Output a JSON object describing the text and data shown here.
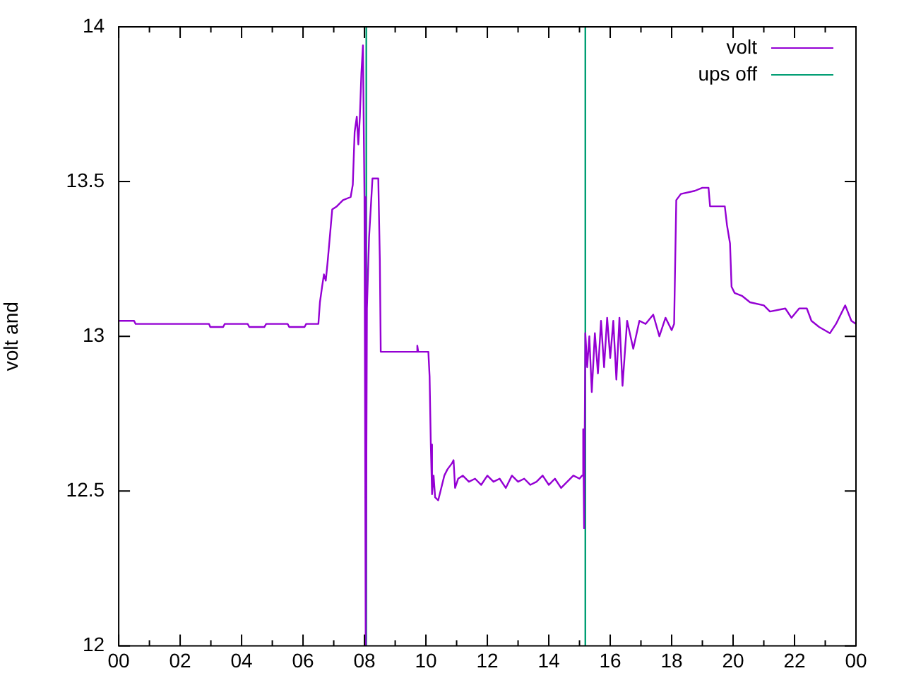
{
  "chart_data": {
    "type": "line",
    "ylabel": "volt and",
    "legend": "top right",
    "marker": "none",
    "line_style": "solid",
    "xlim": [
      0,
      24
    ],
    "xticks": [
      {
        "value": 0,
        "label": "00"
      },
      {
        "value": 1,
        "label": null
      },
      {
        "value": 2,
        "label": "02"
      },
      {
        "value": 3,
        "label": null
      },
      {
        "value": 4,
        "label": "04"
      },
      {
        "value": 5,
        "label": null
      },
      {
        "value": 6,
        "label": "06"
      },
      {
        "value": 7,
        "label": null
      },
      {
        "value": 8,
        "label": "08"
      },
      {
        "value": 9,
        "label": null
      },
      {
        "value": 10,
        "label": "10"
      },
      {
        "value": 11,
        "label": null
      },
      {
        "value": 12,
        "label": "12"
      },
      {
        "value": 13,
        "label": null
      },
      {
        "value": 14,
        "label": "14"
      },
      {
        "value": 15,
        "label": null
      },
      {
        "value": 16,
        "label": "16"
      },
      {
        "value": 17,
        "label": null
      },
      {
        "value": 18,
        "label": "18"
      },
      {
        "value": 19,
        "label": null
      },
      {
        "value": 20,
        "label": "20"
      },
      {
        "value": 21,
        "label": null
      },
      {
        "value": 22,
        "label": "22"
      },
      {
        "value": 23,
        "label": null
      },
      {
        "value": 24,
        "label": "00"
      }
    ],
    "ylim": [
      12,
      14
    ],
    "yticks": [
      12,
      12.5,
      13,
      13.5,
      14
    ],
    "series": [
      {
        "name": "volt",
        "color": "#9400d3",
        "x": [
          0,
          0.5,
          0.55,
          2.94,
          2.98,
          3.4,
          3.45,
          4.2,
          4.25,
          4.74,
          4.8,
          5.5,
          5.55,
          6.05,
          6.1,
          6.5,
          6.55,
          6.62,
          6.68,
          6.74,
          6.8,
          6.88,
          6.95,
          7.1,
          7.3,
          7.55,
          7.62,
          7.68,
          7.75,
          7.8,
          7.85,
          7.9,
          7.95,
          8.0,
          8.04,
          8.08,
          8.15,
          8.22,
          8.26,
          8.45,
          8.5,
          8.53,
          9.7,
          9.72,
          9.75,
          10.08,
          10.12,
          10.16,
          10.2,
          10.25,
          10.3,
          10.4,
          10.5,
          10.6,
          10.7,
          10.85,
          10.9,
          10.95,
          11.05,
          11.2,
          11.4,
          11.6,
          11.8,
          12.0,
          12.2,
          12.4,
          12.6,
          12.8,
          13.0,
          13.2,
          13.4,
          13.6,
          13.8,
          14.0,
          14.2,
          14.4,
          14.6,
          14.8,
          15.0,
          15.08,
          15.12,
          15.15,
          15.19,
          15.25,
          15.32,
          15.4,
          15.5,
          15.6,
          15.7,
          15.8,
          15.9,
          16.0,
          16.1,
          16.2,
          16.3,
          16.4,
          16.55,
          16.75,
          16.95,
          17.15,
          17.4,
          17.6,
          17.8,
          18.0,
          18.08,
          18.15,
          18.3,
          18.75,
          19.0,
          19.2,
          19.25,
          19.73,
          19.8,
          19.9,
          19.95,
          20.05,
          20.3,
          20.55,
          21.0,
          21.2,
          21.7,
          21.9,
          22.15,
          22.4,
          22.55,
          22.8,
          23.15,
          23.35,
          23.65,
          23.85,
          24.0
        ],
        "values": [
          13.05,
          13.05,
          13.04,
          13.04,
          13.03,
          13.03,
          13.04,
          13.04,
          13.03,
          13.03,
          13.04,
          13.04,
          13.03,
          13.03,
          13.04,
          13.04,
          13.11,
          13.16,
          13.2,
          13.18,
          13.24,
          13.33,
          13.41,
          13.42,
          13.44,
          13.45,
          13.49,
          13.66,
          13.71,
          13.62,
          13.71,
          13.85,
          13.94,
          13.45,
          12.0,
          13.09,
          13.32,
          13.44,
          13.51,
          13.51,
          13.25,
          12.95,
          12.95,
          12.97,
          12.95,
          12.95,
          12.87,
          12.65,
          12.49,
          12.55,
          12.48,
          12.47,
          12.51,
          12.55,
          12.57,
          12.59,
          12.6,
          12.51,
          12.54,
          12.55,
          12.53,
          12.54,
          12.52,
          12.55,
          12.53,
          12.54,
          12.51,
          12.55,
          12.53,
          12.54,
          12.52,
          12.53,
          12.55,
          12.52,
          12.54,
          12.51,
          12.53,
          12.55,
          12.54,
          12.55,
          12.7,
          12.38,
          13.01,
          12.9,
          13.0,
          12.82,
          13.01,
          12.88,
          13.05,
          12.9,
          13.06,
          12.93,
          13.05,
          12.86,
          13.06,
          12.84,
          13.05,
          12.96,
          13.05,
          13.04,
          13.07,
          13.0,
          13.06,
          13.02,
          13.04,
          13.44,
          13.46,
          13.47,
          13.48,
          13.48,
          13.42,
          13.42,
          13.36,
          13.3,
          13.16,
          13.14,
          13.13,
          13.11,
          13.1,
          13.08,
          13.09,
          13.06,
          13.09,
          13.09,
          13.05,
          13.03,
          13.01,
          13.04,
          13.1,
          13.05,
          13.04
        ]
      },
      {
        "name": "ups off",
        "color": "#009e73",
        "x": [
          8.06,
          8.06
        ],
        "values": [
          12,
          14
        ]
      },
      {
        "color": "#009e73",
        "x": [
          15.19,
          15.19
        ],
        "values": [
          12,
          14
        ]
      }
    ]
  }
}
